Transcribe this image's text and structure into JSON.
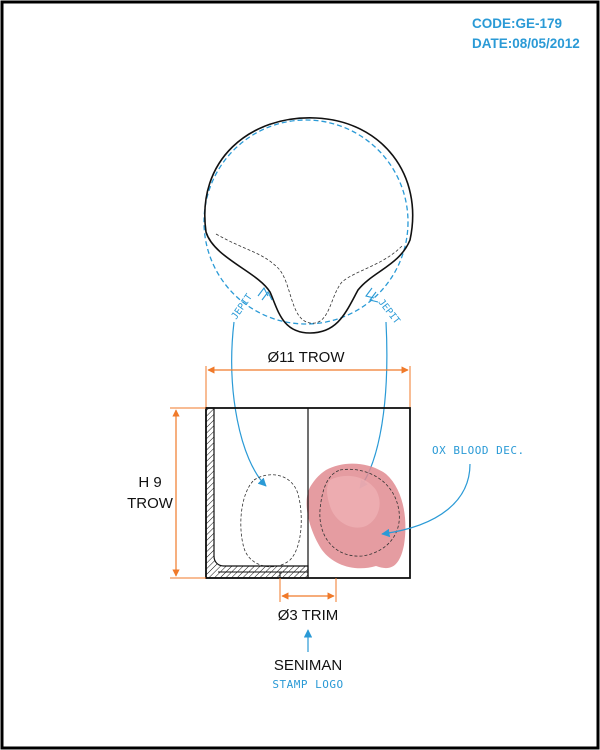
{
  "header": {
    "code": "CODE:GE-179",
    "date": "DATE:08/05/2012"
  },
  "labels": {
    "jepit_left": "JEPIT",
    "jepit_right": "JEPIT",
    "diameter": "Ø11 TROW",
    "height_line1": "H 9",
    "height_line2": "TROW",
    "decoration": "OX BLOOD DEC.",
    "foot": "Ø3 TRIM",
    "brand": "SENIMAN",
    "stamp": "STAMP LOGO"
  },
  "colors": {
    "frame": "#000000",
    "annotation_blue": "#2a9ad6",
    "dimension_orange": "#f07a2a",
    "ox_blood": "#e08b91",
    "line": "#111111"
  }
}
